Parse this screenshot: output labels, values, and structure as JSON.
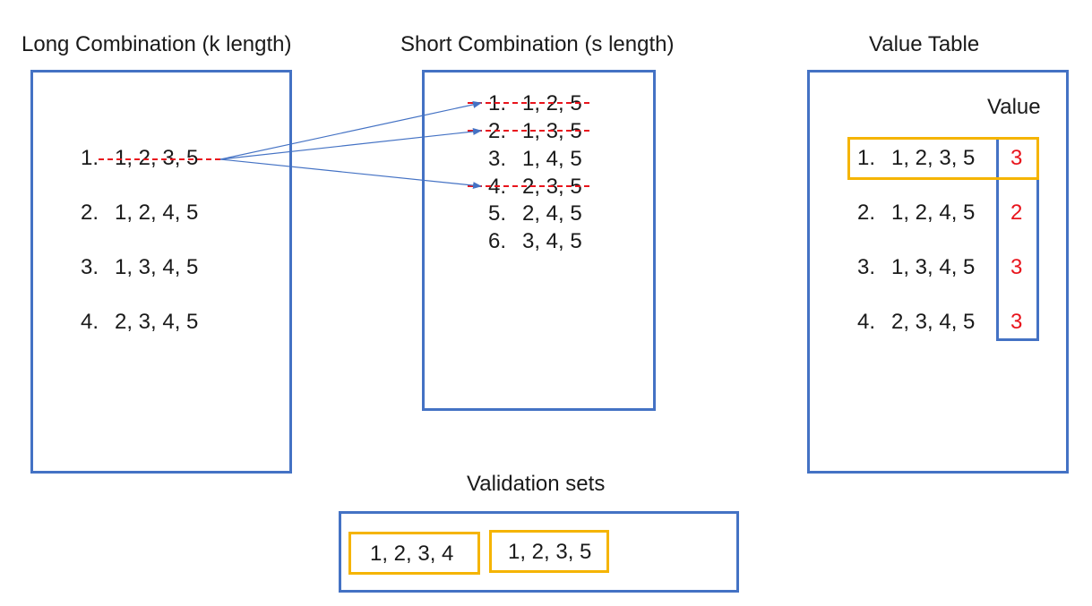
{
  "long": {
    "title": "Long Combination (k length)",
    "items": [
      {
        "num": "1.",
        "combo": "1, 2, 3, 5"
      },
      {
        "num": "2.",
        "combo": "1, 2, 4, 5"
      },
      {
        "num": "3.",
        "combo": "1, 3, 4, 5"
      },
      {
        "num": "4.",
        "combo": "2, 3, 4, 5"
      }
    ]
  },
  "short": {
    "title": "Short Combination (s length)",
    "items": [
      {
        "num": "1.",
        "combo": "1, 2, 5"
      },
      {
        "num": "2.",
        "combo": "1, 3, 5"
      },
      {
        "num": "3.",
        "combo": "1, 4, 5"
      },
      {
        "num": "4.",
        "combo": "2, 3, 5"
      },
      {
        "num": "5.",
        "combo": "2, 4, 5"
      },
      {
        "num": "6.",
        "combo": "3, 4, 5"
      }
    ]
  },
  "value_table": {
    "title": "Value Table",
    "header": "Value",
    "rows": [
      {
        "num": "1.",
        "combo": "1, 2, 3, 5",
        "value": "3"
      },
      {
        "num": "2.",
        "combo": "1, 2, 4, 5",
        "value": "2"
      },
      {
        "num": "3.",
        "combo": "1, 3, 4, 5",
        "value": "3"
      },
      {
        "num": "4.",
        "combo": "2, 3, 4, 5",
        "value": "3"
      }
    ]
  },
  "validation": {
    "title": "Validation sets",
    "sets": [
      "1, 2, 3, 4",
      "1, 2, 3, 5"
    ]
  },
  "colors": {
    "box_border": "#4472c4",
    "highlight": "#f5b400",
    "strike": "#e8141c",
    "arrow": "#4472c4"
  }
}
